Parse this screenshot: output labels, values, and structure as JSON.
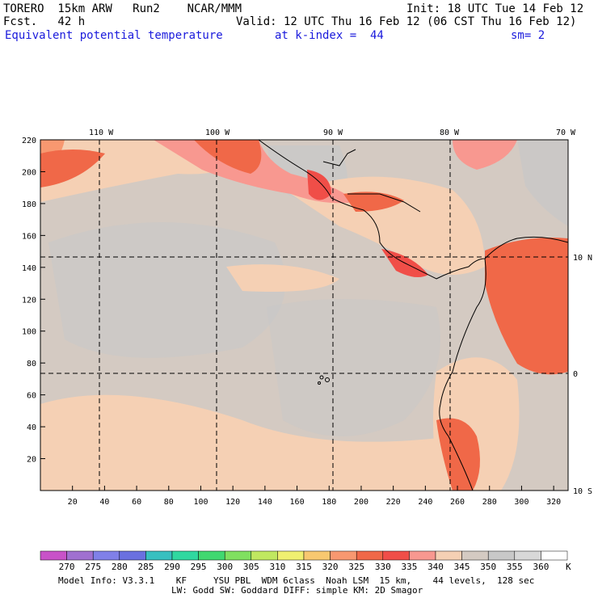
{
  "header": {
    "model_line": "TORERO  15km ARW   Run2    NCAR/MMM",
    "init": "Init: 18 UTC Tue 14 Feb 12",
    "fcst_line": "Fcst.   42 h",
    "valid": "Valid: 12 UTC Thu 16 Feb 12 (06 CST Thu 16 Feb 12)",
    "field": "Equivalent potential temperature",
    "kindex": "at k-index =  44",
    "sm": "sm= 2"
  },
  "axes": {
    "x_ticks": [
      "20",
      "40",
      "60",
      "80",
      "100",
      "120",
      "140",
      "160",
      "180",
      "200",
      "220",
      "240",
      "260",
      "280",
      "300",
      "320"
    ],
    "y_ticks": [
      "20",
      "40",
      "60",
      "80",
      "100",
      "120",
      "140",
      "160",
      "180",
      "200",
      "220"
    ],
    "lon_labels": [
      "110 W",
      "100 W",
      "90 W",
      "80 W",
      "70 W"
    ],
    "lat_labels": [
      "10 N",
      "0",
      "10 S"
    ]
  },
  "colorbar": {
    "labels": [
      "270",
      "275",
      "280",
      "285",
      "290",
      "295",
      "300",
      "305",
      "310",
      "315",
      "320",
      "325",
      "330",
      "335",
      "340",
      "345",
      "350",
      "355",
      "360"
    ],
    "unit": "K",
    "colors": [
      "#c852c8",
      "#a070d0",
      "#8080e8",
      "#6a70e0",
      "#38c0c0",
      "#30d8a0",
      "#40d870",
      "#80e060",
      "#c0e860",
      "#f0f070",
      "#f8c870",
      "#f89870",
      "#f06848",
      "#f04e48",
      "#f89890",
      "#f5d0b4",
      "#d4cac2",
      "#c8c8c8",
      "#d8d8d8",
      "#ffffff"
    ]
  },
  "footer": {
    "line1": "Model Info: V3.3.1    KF     YSU PBL  WDM 6class  Noah LSM  15 km,    44 levels,  128 sec",
    "line2": "LW: Godd SW: Goddard DIFF: simple KM: 2D Smagor"
  }
}
